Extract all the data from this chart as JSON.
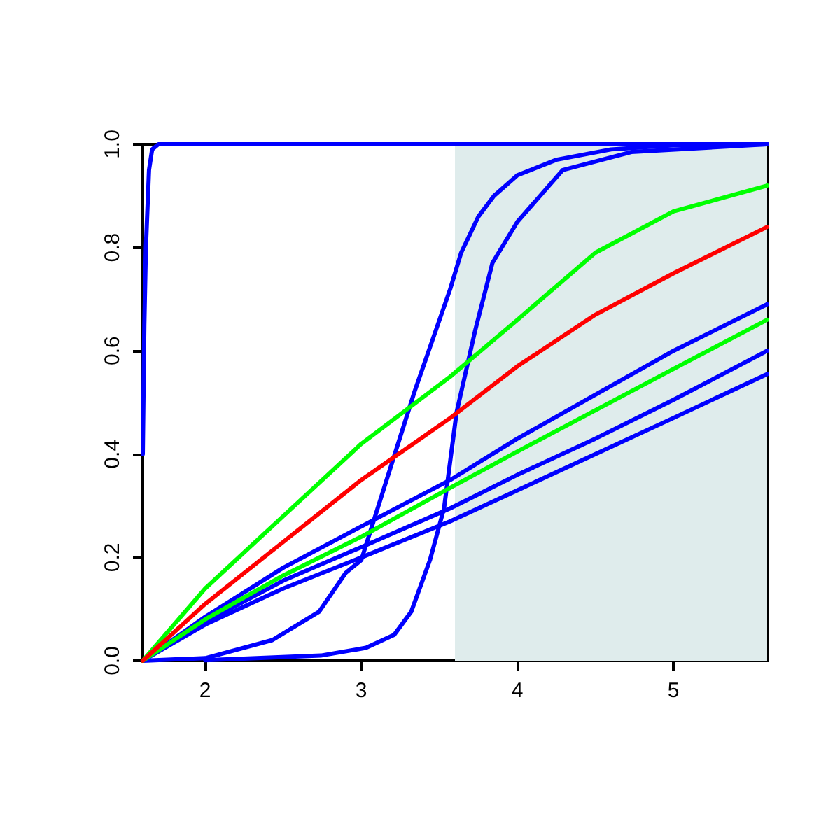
{
  "chart_data": {
    "type": "line",
    "xlim": [
      1.6,
      5.6
    ],
    "xticks": [
      2,
      3,
      4,
      5
    ],
    "ylim": [
      0,
      1.0
    ],
    "yticks": [
      {
        "value": 0,
        "label": "0.0"
      },
      {
        "value": 0.2,
        "label": "0.2"
      },
      {
        "value": 0.4,
        "label": "0.4"
      },
      {
        "value": 0.6,
        "label": "0.6"
      },
      {
        "value": 0.8,
        "label": "0.8"
      },
      {
        "value": 1.0,
        "label": "1.0"
      }
    ],
    "grid": false,
    "bands": [
      {
        "axis": "x",
        "from": 3.6,
        "to": 5.6,
        "color": "#dfecec"
      }
    ],
    "series": [
      {
        "color": "#0000ff",
        "x": [
          1.6,
          1.61,
          1.62,
          1.64,
          1.66,
          1.7,
          5.6
        ],
        "values": [
          0.4,
          0.65,
          0.8,
          0.95,
          0.99,
          1.0,
          1.0
        ]
      },
      {
        "color": "#0000ff",
        "x": [
          1.6,
          2.0,
          2.43,
          2.73,
          2.9,
          3.0,
          3.34,
          3.57,
          3.64,
          3.75,
          3.85,
          4.0,
          4.25,
          4.6,
          5.0,
          5.6
        ],
        "values": [
          0,
          0.005,
          0.04,
          0.095,
          0.17,
          0.195,
          0.52,
          0.72,
          0.79,
          0.86,
          0.9,
          0.94,
          0.97,
          0.99,
          0.998,
          1.0
        ]
      },
      {
        "color": "#0000ff",
        "x": [
          2.0,
          2.74,
          3.03,
          3.21,
          3.32,
          3.44,
          3.53,
          3.61,
          3.73,
          3.84,
          4.0,
          4.29,
          4.73,
          5.6
        ],
        "values": [
          0.001,
          0.01,
          0.025,
          0.05,
          0.095,
          0.195,
          0.295,
          0.48,
          0.64,
          0.77,
          0.85,
          0.95,
          0.985,
          1.0
        ]
      },
      {
        "color": "#0000ff",
        "x": [
          1.6,
          2.0,
          2.5,
          3.0,
          3.57,
          4.0,
          4.5,
          5.0,
          5.6
        ],
        "values": [
          0,
          0.085,
          0.18,
          0.26,
          0.35,
          0.43,
          0.515,
          0.6,
          0.69
        ]
      },
      {
        "color": "#0000ff",
        "x": [
          1.6,
          2.0,
          2.5,
          3.0,
          3.57,
          4.0,
          4.5,
          5.0,
          5.6
        ],
        "values": [
          0,
          0.075,
          0.155,
          0.22,
          0.295,
          0.36,
          0.43,
          0.505,
          0.6
        ]
      },
      {
        "color": "#0000ff",
        "x": [
          1.6,
          2.0,
          2.5,
          3.0,
          3.57,
          4.0,
          4.5,
          5.0,
          5.6
        ],
        "values": [
          0,
          0.07,
          0.14,
          0.2,
          0.27,
          0.33,
          0.4,
          0.47,
          0.555
        ]
      },
      {
        "color": "#00ff00",
        "x": [
          1.6,
          2.0,
          2.5,
          3.0,
          3.57,
          4.0,
          4.5,
          5.0,
          5.6
        ],
        "values": [
          0,
          0.08,
          0.165,
          0.24,
          0.335,
          0.405,
          0.485,
          0.565,
          0.66
        ]
      },
      {
        "color": "#00ff00",
        "x": [
          1.6,
          2.0,
          2.5,
          3.0,
          3.57,
          4.0,
          4.5,
          5.0,
          5.6
        ],
        "values": [
          0,
          0.14,
          0.28,
          0.42,
          0.55,
          0.66,
          0.79,
          0.87,
          0.92
        ]
      },
      {
        "color": "#ff0000",
        "x": [
          1.6,
          2.0,
          2.5,
          3.0,
          3.57,
          4.0,
          4.5,
          5.0,
          5.6
        ],
        "values": [
          0,
          0.11,
          0.23,
          0.35,
          0.47,
          0.57,
          0.67,
          0.75,
          0.84
        ]
      }
    ]
  }
}
